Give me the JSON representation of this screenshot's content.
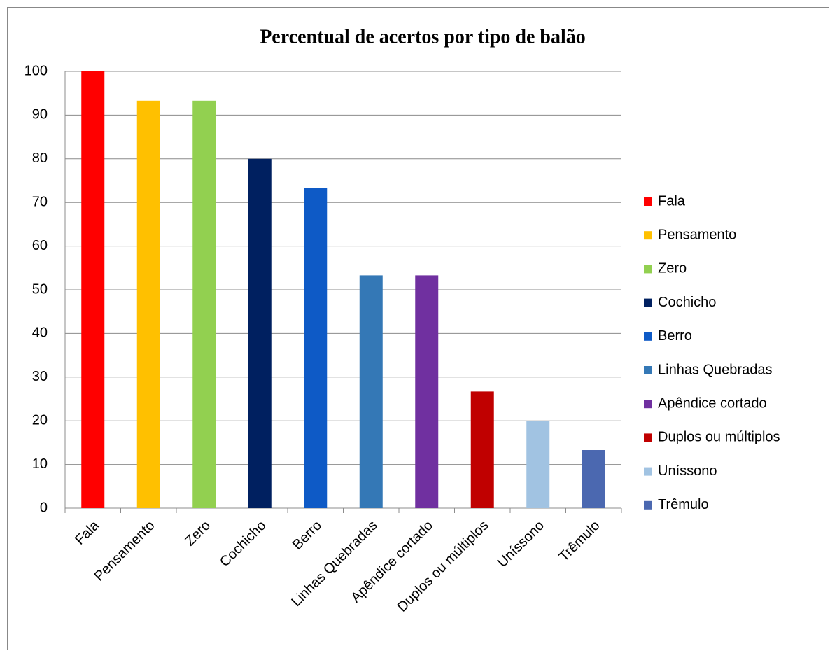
{
  "chart_data": {
    "type": "bar",
    "title": "Percentual de acertos por tipo de balão",
    "categories": [
      "Fala",
      "Pensamento",
      "Zero",
      "Cochicho",
      "Berro",
      "Linhas Quebradas",
      "Apêndice cortado",
      "Duplos ou múltiplos",
      "Uníssono",
      "Trêmulo"
    ],
    "values": [
      100,
      93.3,
      93.3,
      80,
      73.3,
      53.3,
      53.3,
      26.7,
      20,
      13.3
    ],
    "colors": [
      "#ff0000",
      "#ffc000",
      "#92d050",
      "#002060",
      "#0e5ac6",
      "#3478b6",
      "#7030a0",
      "#c00000",
      "#a1c3e2",
      "#4b68b0"
    ],
    "ylim": [
      0,
      100
    ],
    "yticks": [
      0,
      10,
      20,
      30,
      40,
      50,
      60,
      70,
      80,
      90,
      100
    ],
    "grid": true,
    "legend": "right"
  }
}
